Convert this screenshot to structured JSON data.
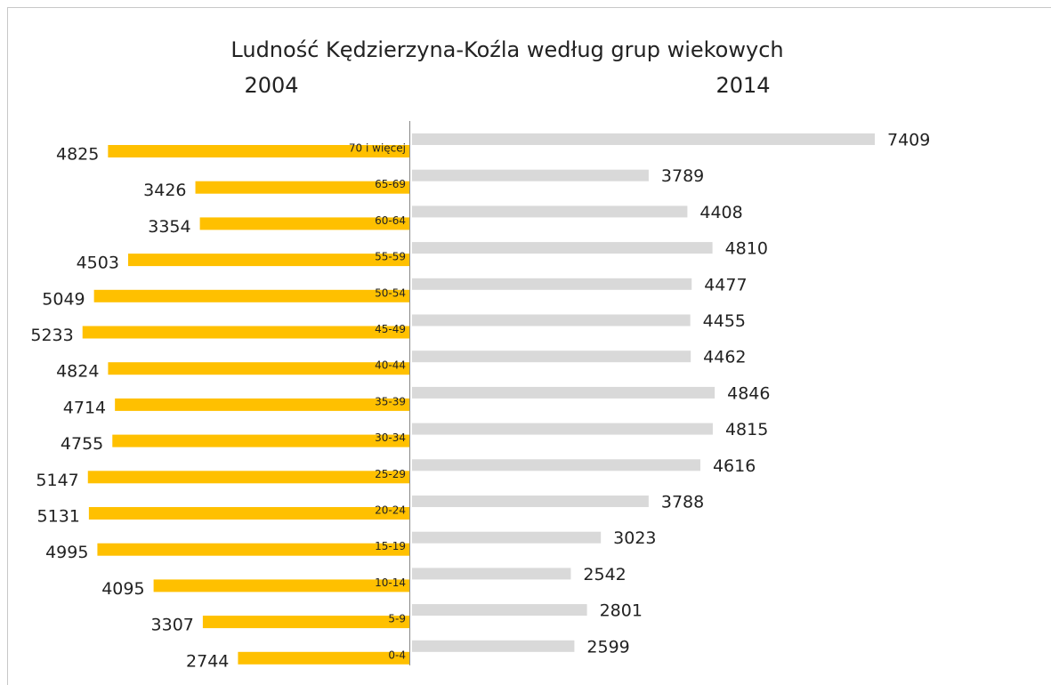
{
  "chart_data": {
    "type": "butterfly",
    "title": "Ludność Kędzierzyna-Koźla według grup wiekowych",
    "categories": [
      "70 i więcej",
      "65-69",
      "60-64",
      "55-59",
      "50-54",
      "45-49",
      "40-44",
      "35-39",
      "30-34",
      "25-29",
      "20-24",
      "15-19",
      "10-14",
      "5-9",
      "0-4"
    ],
    "series": [
      {
        "name": "2004",
        "color": "#ffc000",
        "values": [
          4825,
          3426,
          3354,
          4503,
          5049,
          5233,
          4824,
          4714,
          4755,
          5147,
          5131,
          4995,
          4095,
          3307,
          2744
        ]
      },
      {
        "name": "2014",
        "color": "#d9d9d9",
        "values": [
          7409,
          3789,
          4408,
          4810,
          4477,
          4455,
          4462,
          4846,
          4815,
          4616,
          3788,
          3023,
          2542,
          2801,
          2599
        ]
      }
    ]
  }
}
